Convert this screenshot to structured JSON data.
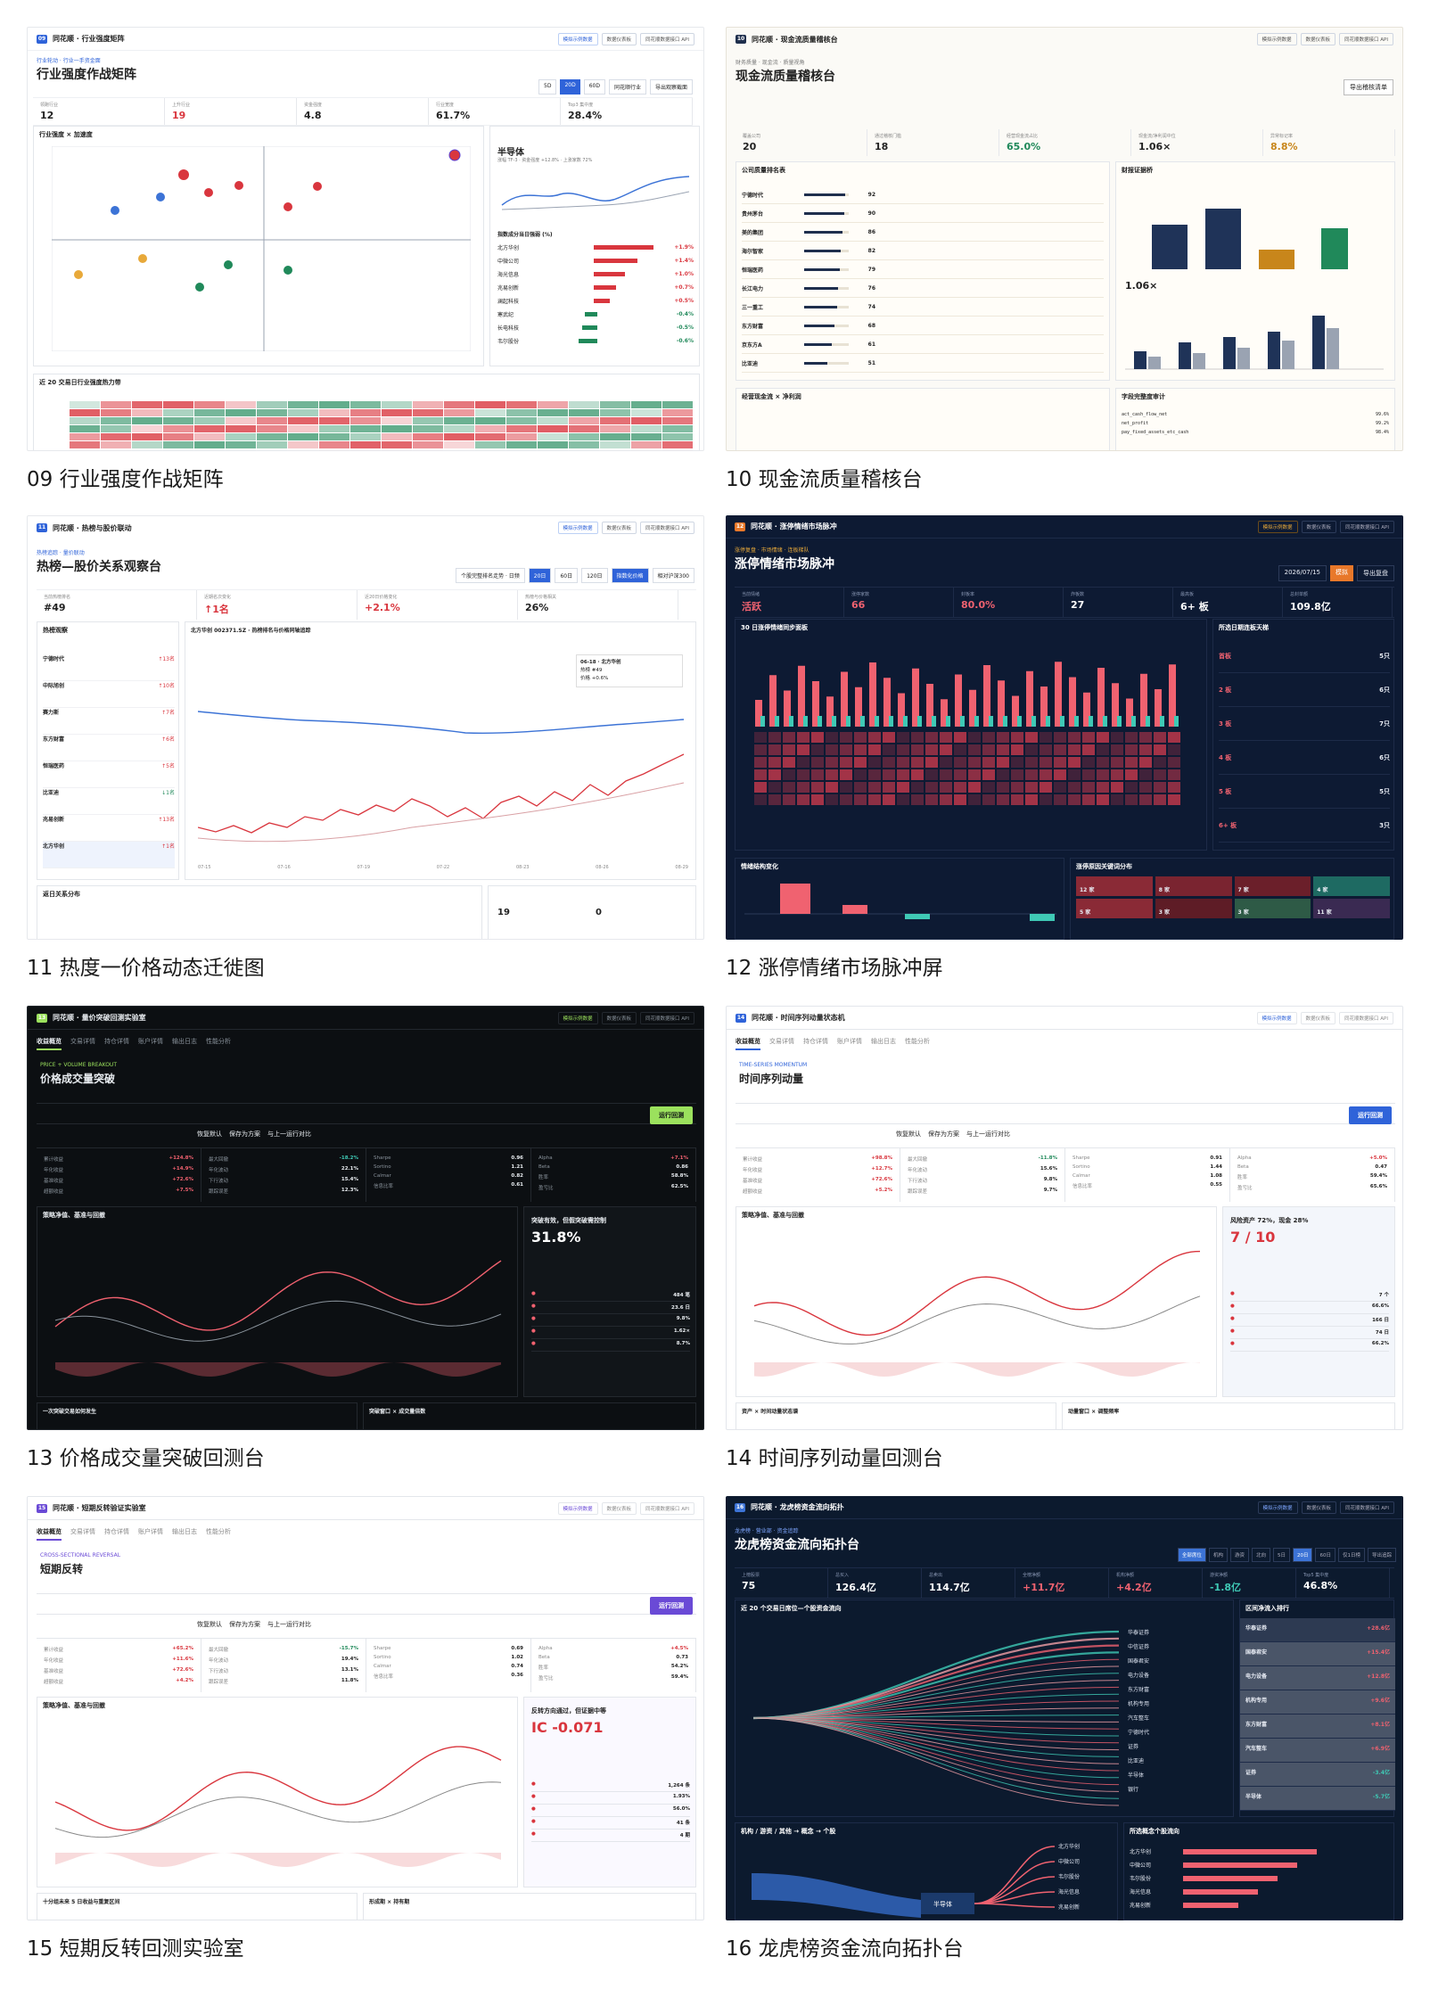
{
  "tb_buttons": [
    "模拟示例数据",
    "数据仪表板",
    "同花顺数据接口 API"
  ],
  "cards": [
    {
      "caption": "09 行业强度作战矩阵",
      "title": "同花顺 · 行业强度矩阵",
      "num": "09",
      "headline": "行业强度作战矩阵",
      "kicker": "行业轮动 · 行业一手资金面",
      "kpis": [
        {
          "label": "领跑行业",
          "value": "12"
        },
        {
          "label": "上升行业",
          "value": "19"
        },
        {
          "label": "资金强度",
          "value": "4.8"
        },
        {
          "label": "行业宽度",
          "value": "61.7%"
        },
        {
          "label": "Top3 集中度",
          "value": "28.4%"
        }
      ],
      "quadrant_title": "行业强度 × 加速度",
      "sector_name": "半导体",
      "sector_sub": "涨幅 TF-3 · 资金强度 +12.8% · 上涨家数 72%",
      "bars_title": "指数成分当日强弱 (%)",
      "bars": [
        {
          "name": "北方华创",
          "value": "+1.9%"
        },
        {
          "name": "中微公司",
          "value": "+1.4%"
        },
        {
          "name": "海光信息",
          "value": "+1.0%"
        },
        {
          "name": "兆易创新",
          "value": "+0.7%"
        },
        {
          "name": "澜起科技",
          "value": "+0.5%"
        },
        {
          "name": "寒武纪",
          "value": "-0.4%"
        },
        {
          "name": "长电科技",
          "value": "-0.5%"
        },
        {
          "name": "韦尔股份",
          "value": "-0.6%"
        }
      ],
      "heat_title": "近 20 交易日行业强度热力带",
      "buttons": [
        "同花顺行业",
        "导出观察截面"
      ],
      "ranges": [
        "5D",
        "20D",
        "60D"
      ]
    },
    {
      "caption": "10 现金流质量稽核台",
      "title": "同花顺 · 现金流质量稽核台",
      "num": "10",
      "headline": "现金流质量稽核台",
      "kicker": "财务质量 · 现金流 · 质量视角",
      "export": "导出稽核清单",
      "kpis": [
        {
          "label": "覆盖公司",
          "value": "20"
        },
        {
          "label": "通过稽核门槛",
          "value": "18"
        },
        {
          "label": "经营现金流占比",
          "value": "65.0%"
        },
        {
          "label": "现金流/净利润中位",
          "value": "1.06×"
        },
        {
          "label": "异常标记率",
          "value": "8.8%"
        }
      ],
      "table_title": "公司质量排名表",
      "table": [
        {
          "name": "宁德时代",
          "score": "92"
        },
        {
          "name": "贵州茅台",
          "score": "90"
        },
        {
          "name": "美的集团",
          "score": "86"
        },
        {
          "name": "海尔智家",
          "score": "82"
        },
        {
          "name": "恒瑞医药",
          "score": "79"
        },
        {
          "name": "长江电力",
          "score": "76"
        },
        {
          "name": "三一重工",
          "score": "74"
        },
        {
          "name": "东方财富",
          "score": "68"
        },
        {
          "name": "京东方A",
          "score": "61"
        },
        {
          "name": "比亚迪",
          "score": "51"
        }
      ],
      "side_title": "财报证据桥",
      "ratio": "1.06×",
      "bottom_left": "经营现金流 × 净利润",
      "bottom_right": "字段完整度审计",
      "audit": [
        {
          "field": "act_cash_flow_net",
          "value": "99.6%"
        },
        {
          "field": "net_profit",
          "value": "99.2%"
        },
        {
          "field": "pay_fixed_assets_etc_cash",
          "value": "98.4%"
        }
      ]
    },
    {
      "caption": "11 热度一价格动态迁徙图",
      "title": "同花顺 · 热榜与股价联动",
      "num": "11",
      "headline": "热榜—股价关系观察台",
      "kicker": "热榜追踪 · 量价联动",
      "kpis": [
        {
          "label": "当前热榜排名",
          "value": "#49"
        },
        {
          "label": "近期名次变化",
          "value": "↑1名"
        },
        {
          "label": "近20日价格变化",
          "value": "+2.1%"
        },
        {
          "label": "热榜与价格相关",
          "value": "26%"
        }
      ],
      "controls": [
        "个股完整排名走势 · 日频",
        "20日",
        "60日",
        "120日",
        "指数化价格",
        "相对沪深300"
      ],
      "list_title": "热榜观察",
      "list": [
        {
          "name": "宁德时代",
          "chg": "↑13名"
        },
        {
          "name": "中际旭创",
          "chg": "↑10名"
        },
        {
          "name": "赛力斯",
          "chg": "↑7名"
        },
        {
          "name": "东方财富",
          "chg": "↑6名"
        },
        {
          "name": "恒瑞医药",
          "chg": "↑5名"
        },
        {
          "name": "比亚迪",
          "chg": "↓1名"
        },
        {
          "name": "兆易创新",
          "chg": "↑13名"
        },
        {
          "name": "北方华创",
          "chg": "↑1名"
        }
      ],
      "chart_title": "北方华创 002371.SZ · 热榜排名与价格同轴追踪",
      "tooltip": [
        "06-18 · 北方华创",
        "热榜 #49",
        "价格 +0.6%"
      ],
      "xticks": [
        "07-15",
        "07-16",
        "07-19",
        "07-22",
        "08-23",
        "08-26",
        "08-29"
      ],
      "bottom_left": "返日关系分布",
      "bottom_right_values": [
        "19",
        "0"
      ]
    },
    {
      "caption": "12 涨停情绪市场脉冲屏",
      "title": "同花顺 · 涨停情绪市场脉冲",
      "num": "12",
      "headline": "涨停情绪市场脉冲",
      "kicker": "涨停复盘 · 市场情绪 · 连板梯队",
      "date": "2026/07/15",
      "buttons": [
        "模拟",
        "导出复盘"
      ],
      "kpis": [
        {
          "label": "当前情绪",
          "value": "活跃"
        },
        {
          "label": "涨停家数",
          "value": "66"
        },
        {
          "label": "封板率",
          "value": "80.0%"
        },
        {
          "label": "炸板数",
          "value": "27"
        },
        {
          "label": "最高板",
          "value": "6+ 板"
        },
        {
          "label": "总封单额",
          "value": "109.8亿"
        }
      ],
      "main_title": "30 日涨停情绪同步面板",
      "ladder_title": "所选日期连板天梯",
      "ladder": [
        {
          "label": "首板",
          "count": "5只"
        },
        {
          "label": "2 板",
          "count": "6只"
        },
        {
          "label": "3 板",
          "count": "7只"
        },
        {
          "label": "4 板",
          "count": "6只"
        },
        {
          "label": "5 板",
          "count": "5只"
        },
        {
          "label": "6+ 板",
          "count": "3只"
        }
      ],
      "bottom_left": "情绪结构变化",
      "bottom_right": "涨停原因关键词分布",
      "tiles": [
        "12 家",
        "8 家",
        "7 家",
        "4 家",
        "5 家",
        "3 家",
        "3 家",
        "11 家"
      ]
    },
    {
      "caption": "13 价格成交量突破回测台",
      "title": "同花顺 · 量价突破回测实验室",
      "num": "13",
      "tabs": [
        "收益概览",
        "交易详情",
        "持仓详情",
        "账户详情",
        "输出日志",
        "性能分析"
      ],
      "kicker": "PRICE + VOLUME BREAKOUT",
      "headline": "价格成交量突破",
      "run": "运行回测",
      "actions": [
        "恢复默认",
        "保存为方案",
        "与上一运行对比"
      ],
      "metrics_a": [
        {
          "label": "累计收益",
          "value": "+124.8%"
        },
        {
          "label": "年化收益",
          "value": "+14.9%"
        },
        {
          "label": "基准收益",
          "value": "+72.6%"
        },
        {
          "label": "超额收益",
          "value": "+7.5%"
        }
      ],
      "metrics_b": [
        {
          "label": "最大回撤",
          "value": "-18.2%"
        },
        {
          "label": "年化波动",
          "value": "22.1%"
        },
        {
          "label": "下行波动",
          "value": "15.4%"
        },
        {
          "label": "跟踪误差",
          "value": "12.3%"
        }
      ],
      "metrics_c": [
        {
          "label": "Sharpe",
          "value": "0.96"
        },
        {
          "label": "Sortino",
          "value": "1.21"
        },
        {
          "label": "Calmar",
          "value": "0.82"
        },
        {
          "label": "信息比率",
          "value": "0.61"
        }
      ],
      "metrics_d": [
        {
          "label": "Alpha",
          "value": "+7.1%"
        },
        {
          "label": "Beta",
          "value": "0.86"
        },
        {
          "label": "胜率",
          "value": "58.8%"
        },
        {
          "label": "盈亏比",
          "value": "62.5%"
        }
      ],
      "chart_title": "策略净值、基准与回撤",
      "big": "31.8%",
      "big_title": "突破有效，但假突破需控制",
      "stats": [
        "484 笔",
        "23.6 日",
        "9.8%",
        "1.62×",
        "8.7%"
      ],
      "bottom": [
        "一次突破交易如何发生",
        "突破窗口 × 成交量倍数"
      ]
    },
    {
      "caption": "14 时间序列动量回测台",
      "title": "同花顺 · 时间序列动量状态机",
      "num": "14",
      "tabs": [
        "收益概览",
        "交易详情",
        "持仓详情",
        "账户详情",
        "输出日志",
        "性能分析"
      ],
      "kicker": "TIME-SERIES MOMENTUM",
      "headline": "时间序列动量",
      "run": "运行回测",
      "actions": [
        "恢复默认",
        "保存为方案",
        "与上一运行对比"
      ],
      "metrics_a": [
        {
          "label": "累计收益",
          "value": "+98.8%"
        },
        {
          "label": "年化收益",
          "value": "+12.7%"
        },
        {
          "label": "基准收益",
          "value": "+72.6%"
        },
        {
          "label": "超额收益",
          "value": "+5.2%"
        }
      ],
      "metrics_b": [
        {
          "label": "最大回撤",
          "value": "-11.8%"
        },
        {
          "label": "年化波动",
          "value": "15.6%"
        },
        {
          "label": "下行波动",
          "value": "9.8%"
        },
        {
          "label": "跟踪误差",
          "value": "9.7%"
        }
      ],
      "metrics_c": [
        {
          "label": "Sharpe",
          "value": "0.91"
        },
        {
          "label": "Sortino",
          "value": "1.44"
        },
        {
          "label": "Calmar",
          "value": "1.08"
        },
        {
          "label": "信息比率",
          "value": "0.55"
        }
      ],
      "metrics_d": [
        {
          "label": "Alpha",
          "value": "+5.0%"
        },
        {
          "label": "Beta",
          "value": "0.47"
        },
        {
          "label": "胜率",
          "value": "59.4%"
        },
        {
          "label": "盈亏比",
          "value": "65.6%"
        }
      ],
      "chart_title": "策略净值、基准与回撤",
      "big": "7 / 10",
      "big_title": "风险资产 72%，现金 28%",
      "stats": [
        "7 个",
        "66.6%",
        "166 日",
        "74 日",
        "66.2%"
      ],
      "bottom": [
        "资产 × 时间动量状态谱",
        "动量窗口 × 调整频率"
      ]
    },
    {
      "caption": "15 短期反转回测实验室",
      "title": "同花顺 · 短期反转验证实验室",
      "num": "15",
      "tabs": [
        "收益概览",
        "交易详情",
        "持仓详情",
        "账户详情",
        "输出日志",
        "性能分析"
      ],
      "kicker": "CROSS-SECTIONAL REVERSAL",
      "headline": "短期反转",
      "run": "运行回测",
      "actions": [
        "恢复默认",
        "保存为方案",
        "与上一运行对比"
      ],
      "metrics_a": [
        {
          "label": "累计收益",
          "value": "+65.2%"
        },
        {
          "label": "年化收益",
          "value": "+11.6%"
        },
        {
          "label": "基准收益",
          "value": "+72.6%"
        },
        {
          "label": "超额收益",
          "value": "+4.2%"
        }
      ],
      "metrics_b": [
        {
          "label": "最大回撤",
          "value": "-15.7%"
        },
        {
          "label": "年化波动",
          "value": "19.4%"
        },
        {
          "label": "下行波动",
          "value": "13.1%"
        },
        {
          "label": "跟踪误差",
          "value": "11.8%"
        }
      ],
      "metrics_c": [
        {
          "label": "Sharpe",
          "value": "0.69"
        },
        {
          "label": "Sortino",
          "value": "1.02"
        },
        {
          "label": "Calmar",
          "value": "0.74"
        },
        {
          "label": "信息比率",
          "value": "0.36"
        }
      ],
      "metrics_d": [
        {
          "label": "Alpha",
          "value": "+4.5%"
        },
        {
          "label": "Beta",
          "value": "0.73"
        },
        {
          "label": "胜率",
          "value": "54.2%"
        },
        {
          "label": "盈亏比",
          "value": "59.4%"
        }
      ],
      "chart_title": "策略净值、基准与回撤",
      "big": "IC -0.071",
      "big_title": "反转方向通过，但证据中等",
      "stats": [
        "1,264 条",
        "1.93%",
        "56.0%",
        "41 条",
        "4 期"
      ],
      "bottom": [
        "十分组未来 5 日收益与重复区间",
        "形成期 × 持有期"
      ]
    },
    {
      "caption": "16 龙虎榜资金流向拓扑台",
      "title": "同花顺 · 龙虎榜资金流向拓扑",
      "num": "16",
      "headline": "龙虎榜资金流向拓扑台",
      "kicker": "龙虎榜 · 营业部 · 资金追踪",
      "controls": [
        "全部席位",
        "机构",
        "游资",
        "北向",
        "5日",
        "20日",
        "60日",
        "仅1日榜",
        "导出追踪"
      ],
      "kpis": [
        {
          "label": "上榜股票",
          "value": "75"
        },
        {
          "label": "总买入",
          "value": "126.4亿"
        },
        {
          "label": "总卖出",
          "value": "114.7亿"
        },
        {
          "label": "全榜净额",
          "value": "+11.7亿"
        },
        {
          "label": "机构净额",
          "value": "+4.2亿"
        },
        {
          "label": "游资净额",
          "value": "-1.8亿"
        },
        {
          "label": "Top5 集中度",
          "value": "46.8%"
        }
      ],
      "main_title": "近 20 个交易日席位—个股资金流向",
      "nodes": [
        "华泰证券",
        "中信证券",
        "国泰君安",
        "电力设备",
        "东方财富",
        "机构专用",
        "汽车整车",
        "宁德时代",
        "证券",
        "比亚迪",
        "半导体",
        "银行"
      ],
      "rank_title": "区间净流入排行",
      "rank": [
        {
          "name": "华泰证券",
          "value": "+28.6亿"
        },
        {
          "name": "国泰君安",
          "value": "+15.4亿"
        },
        {
          "name": "电力设备",
          "value": "+12.8亿"
        },
        {
          "name": "机构专用",
          "value": "+9.6亿"
        },
        {
          "name": "东方财富",
          "value": "+8.1亿"
        },
        {
          "name": "汽车整车",
          "value": "+6.9亿"
        },
        {
          "name": "证券",
          "value": "-3.4亿"
        },
        {
          "name": "半导体",
          "value": "-5.7亿"
        }
      ],
      "bottom_left": "机构 / 游资 / 其他 → 概念 → 个股",
      "bottom_right": "所选概念个股流向",
      "hub": "半导体",
      "targets": [
        "北方华创",
        "中微公司",
        "韦尔股份",
        "海光信息",
        "兆易创新"
      ]
    }
  ]
}
